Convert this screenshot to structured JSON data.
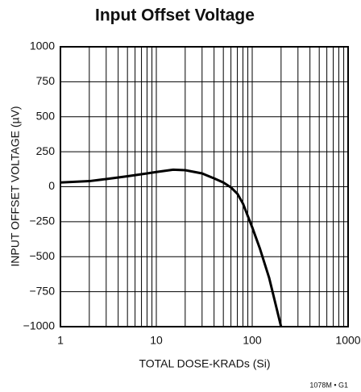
{
  "chart_data": {
    "type": "line",
    "title": "Input Offset Voltage",
    "xlabel": "TOTAL DOSE-KRADs (Si)",
    "ylabel": "INPUT OFFSET VOLTAGE (µV)",
    "note": "1078M • G1",
    "x": [
      1,
      2,
      3,
      5,
      8,
      10,
      15,
      20,
      30,
      40,
      50,
      60,
      70,
      80,
      100,
      120,
      150,
      200
    ],
    "series": [
      {
        "name": "Input Offset Voltage",
        "color": "#000000",
        "values": [
          30,
          40,
          55,
          75,
          95,
          105,
          122,
          118,
          95,
          60,
          30,
          -5,
          -50,
          -120,
          -290,
          -440,
          -650,
          -1000
        ]
      }
    ],
    "xlim": [
      1,
      1000
    ],
    "xticks": [
      1,
      10,
      100,
      1000
    ],
    "xscale": "log",
    "ylim": [
      -1000,
      1000
    ],
    "yticks": [
      {
        "value": -1000,
        "label": "−1000"
      },
      {
        "value": -750,
        "label": "−750"
      },
      {
        "value": -500,
        "label": "−500"
      },
      {
        "value": -250,
        "label": "−250"
      },
      0,
      250,
      500,
      750,
      1000
    ],
    "grid": true
  }
}
